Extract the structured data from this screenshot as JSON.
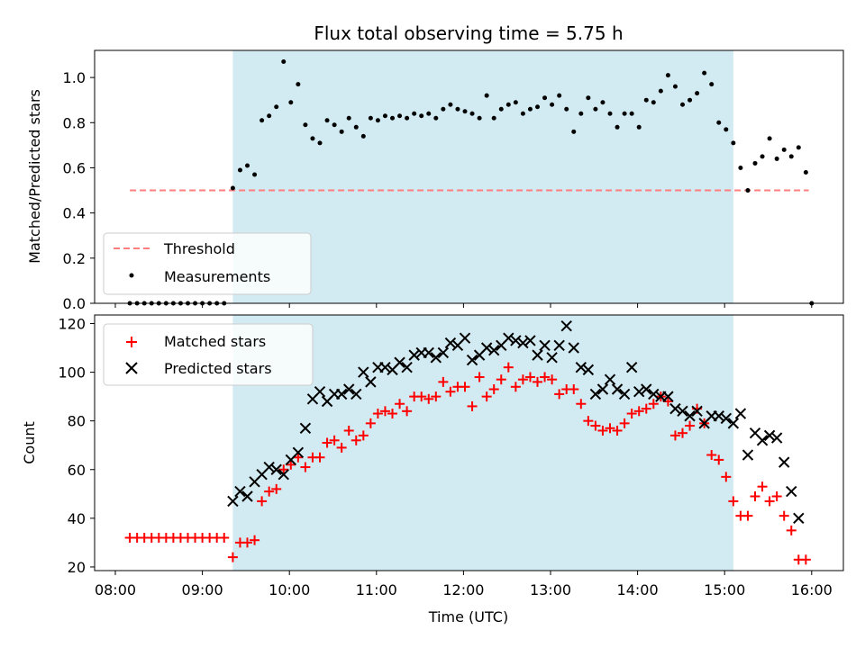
{
  "chart_data": [
    {
      "type": "scatter",
      "title": "Flux total observing time = 5.75 h",
      "xlabel": "",
      "ylabel": "Matched/Predicted stars",
      "ylim": [
        0,
        1.12
      ],
      "yticks": [
        "0.0",
        "0.2",
        "0.4",
        "0.6",
        "0.8",
        "1.0"
      ],
      "shaded_span": [
        "09:21",
        "15:06"
      ],
      "legend": {
        "placement": "lower-left",
        "entries": [
          "Threshold",
          "Measurements"
        ]
      },
      "threshold": {
        "name": "Threshold",
        "y": 0.5,
        "x_from": "08:10",
        "x_to": "15:58"
      },
      "measurements": {
        "name": "Measurements",
        "points": [
          [
            "08:10",
            0
          ],
          [
            "08:15",
            0
          ],
          [
            "08:20",
            0
          ],
          [
            "08:25",
            0
          ],
          [
            "08:30",
            0
          ],
          [
            "08:35",
            0
          ],
          [
            "08:40",
            0
          ],
          [
            "08:45",
            0
          ],
          [
            "08:50",
            0
          ],
          [
            "08:55",
            0
          ],
          [
            "09:00",
            0
          ],
          [
            "09:05",
            0
          ],
          [
            "09:10",
            0
          ],
          [
            "09:15",
            0
          ],
          [
            "09:21",
            0.51
          ],
          [
            "09:26",
            0.59
          ],
          [
            "09:31",
            0.61
          ],
          [
            "09:36",
            0.57
          ],
          [
            "09:41",
            0.81
          ],
          [
            "09:46",
            0.83
          ],
          [
            "09:51",
            0.87
          ],
          [
            "09:56",
            1.07
          ],
          [
            "10:01",
            0.89
          ],
          [
            "10:06",
            0.97
          ],
          [
            "10:11",
            0.79
          ],
          [
            "10:16",
            0.73
          ],
          [
            "10:21",
            0.71
          ],
          [
            "10:26",
            0.81
          ],
          [
            "10:31",
            0.79
          ],
          [
            "10:36",
            0.76
          ],
          [
            "10:41",
            0.82
          ],
          [
            "10:46",
            0.78
          ],
          [
            "10:51",
            0.74
          ],
          [
            "10:56",
            0.82
          ],
          [
            "11:01",
            0.81
          ],
          [
            "11:06",
            0.83
          ],
          [
            "11:11",
            0.82
          ],
          [
            "11:16",
            0.83
          ],
          [
            "11:21",
            0.82
          ],
          [
            "11:26",
            0.84
          ],
          [
            "11:31",
            0.83
          ],
          [
            "11:36",
            0.84
          ],
          [
            "11:41",
            0.82
          ],
          [
            "11:46",
            0.86
          ],
          [
            "11:51",
            0.88
          ],
          [
            "11:56",
            0.86
          ],
          [
            "12:01",
            0.85
          ],
          [
            "12:06",
            0.84
          ],
          [
            "12:11",
            0.82
          ],
          [
            "12:16",
            0.92
          ],
          [
            "12:21",
            0.82
          ],
          [
            "12:26",
            0.86
          ],
          [
            "12:31",
            0.88
          ],
          [
            "12:36",
            0.89
          ],
          [
            "12:41",
            0.84
          ],
          [
            "12:46",
            0.86
          ],
          [
            "12:51",
            0.87
          ],
          [
            "12:56",
            0.91
          ],
          [
            "13:01",
            0.88
          ],
          [
            "13:06",
            0.92
          ],
          [
            "13:11",
            0.86
          ],
          [
            "13:16",
            0.76
          ],
          [
            "13:21",
            0.84
          ],
          [
            "13:26",
            0.91
          ],
          [
            "13:31",
            0.86
          ],
          [
            "13:36",
            0.89
          ],
          [
            "13:41",
            0.84
          ],
          [
            "13:46",
            0.78
          ],
          [
            "13:51",
            0.84
          ],
          [
            "13:56",
            0.84
          ],
          [
            "14:01",
            0.78
          ],
          [
            "14:06",
            0.9
          ],
          [
            "14:11",
            0.89
          ],
          [
            "14:16",
            0.94
          ],
          [
            "14:21",
            1.01
          ],
          [
            "14:26",
            0.96
          ],
          [
            "14:31",
            0.88
          ],
          [
            "14:36",
            0.9
          ],
          [
            "14:41",
            0.93
          ],
          [
            "14:46",
            1.02
          ],
          [
            "14:51",
            0.97
          ],
          [
            "14:56",
            0.8
          ],
          [
            "15:01",
            0.77
          ],
          [
            "15:06",
            0.71
          ],
          [
            "15:11",
            0.6
          ],
          [
            "15:16",
            0.5
          ],
          [
            "15:21",
            0.62
          ],
          [
            "15:26",
            0.65
          ],
          [
            "15:31",
            0.73
          ],
          [
            "15:36",
            0.64
          ],
          [
            "15:41",
            0.68
          ],
          [
            "15:46",
            0.65
          ],
          [
            "15:51",
            0.69
          ],
          [
            "15:56",
            0.58
          ],
          [
            "16:00",
            0
          ]
        ]
      }
    },
    {
      "type": "scatter",
      "title": "",
      "xlabel": "Time (UTC)",
      "ylabel": "Count",
      "ylim": [
        18.5,
        123.5
      ],
      "yticks": [
        "20",
        "40",
        "60",
        "80",
        "100",
        "120"
      ],
      "xticks": [
        "08:00",
        "09:00",
        "10:00",
        "11:00",
        "12:00",
        "13:00",
        "14:00",
        "15:00",
        "16:00"
      ],
      "shaded_span": [
        "09:21",
        "15:06"
      ],
      "legend": {
        "placement": "upper-left",
        "entries": [
          "Matched stars",
          "Predicted stars"
        ]
      },
      "matched": {
        "name": "Matched stars",
        "color": "#ff0000",
        "points": [
          [
            "08:10",
            32
          ],
          [
            "08:15",
            32
          ],
          [
            "08:20",
            32
          ],
          [
            "08:25",
            32
          ],
          [
            "08:30",
            32
          ],
          [
            "08:35",
            32
          ],
          [
            "08:40",
            32
          ],
          [
            "08:45",
            32
          ],
          [
            "08:50",
            32
          ],
          [
            "08:55",
            32
          ],
          [
            "09:00",
            32
          ],
          [
            "09:05",
            32
          ],
          [
            "09:10",
            32
          ],
          [
            "09:15",
            32
          ],
          [
            "09:21",
            24
          ],
          [
            "09:26",
            30
          ],
          [
            "09:31",
            30
          ],
          [
            "09:36",
            31
          ],
          [
            "09:41",
            47
          ],
          [
            "09:46",
            51
          ],
          [
            "09:51",
            52
          ],
          [
            "09:56",
            60
          ],
          [
            "10:01",
            62
          ],
          [
            "10:06",
            65
          ],
          [
            "10:11",
            61
          ],
          [
            "10:16",
            65
          ],
          [
            "10:21",
            65
          ],
          [
            "10:26",
            71
          ],
          [
            "10:31",
            72
          ],
          [
            "10:36",
            69
          ],
          [
            "10:41",
            76
          ],
          [
            "10:46",
            72
          ],
          [
            "10:51",
            74
          ],
          [
            "10:56",
            79
          ],
          [
            "11:01",
            83
          ],
          [
            "11:06",
            84
          ],
          [
            "11:11",
            83
          ],
          [
            "11:16",
            87
          ],
          [
            "11:21",
            84
          ],
          [
            "11:26",
            90
          ],
          [
            "11:31",
            90
          ],
          [
            "11:36",
            89
          ],
          [
            "11:41",
            90
          ],
          [
            "11:46",
            96
          ],
          [
            "11:51",
            92
          ],
          [
            "11:56",
            94
          ],
          [
            "12:01",
            94
          ],
          [
            "12:06",
            86
          ],
          [
            "12:11",
            98
          ],
          [
            "12:16",
            90
          ],
          [
            "12:21",
            93
          ],
          [
            "12:26",
            97
          ],
          [
            "12:31",
            102
          ],
          [
            "12:36",
            94
          ],
          [
            "12:41",
            97
          ],
          [
            "12:46",
            98
          ],
          [
            "12:51",
            96
          ],
          [
            "12:56",
            98
          ],
          [
            "13:01",
            97
          ],
          [
            "13:06",
            91
          ],
          [
            "13:11",
            93
          ],
          [
            "13:16",
            93
          ],
          [
            "13:21",
            87
          ],
          [
            "13:26",
            80
          ],
          [
            "13:31",
            78
          ],
          [
            "13:36",
            76
          ],
          [
            "13:41",
            77
          ],
          [
            "13:46",
            76
          ],
          [
            "13:51",
            79
          ],
          [
            "13:56",
            83
          ],
          [
            "14:01",
            84
          ],
          [
            "14:06",
            85
          ],
          [
            "14:11",
            87
          ],
          [
            "14:16",
            90
          ],
          [
            "14:21",
            88
          ],
          [
            "14:26",
            74
          ],
          [
            "14:31",
            75
          ],
          [
            "14:36",
            78
          ],
          [
            "14:41",
            85
          ],
          [
            "14:46",
            79
          ],
          [
            "14:51",
            66
          ],
          [
            "14:56",
            64
          ],
          [
            "15:01",
            57
          ],
          [
            "15:06",
            47
          ],
          [
            "15:11",
            41
          ],
          [
            "15:16",
            41
          ],
          [
            "15:21",
            49
          ],
          [
            "15:26",
            53
          ],
          [
            "15:31",
            47
          ],
          [
            "15:36",
            49
          ],
          [
            "15:41",
            41
          ],
          [
            "15:46",
            35
          ],
          [
            "15:51",
            23
          ],
          [
            "15:56",
            23
          ]
        ]
      },
      "predicted": {
        "name": "Predicted stars",
        "color": "#000000",
        "points": [
          [
            "09:21",
            47
          ],
          [
            "09:26",
            51
          ],
          [
            "09:31",
            49
          ],
          [
            "09:36",
            55
          ],
          [
            "09:41",
            58
          ],
          [
            "09:46",
            61
          ],
          [
            "09:51",
            60
          ],
          [
            "09:56",
            58
          ],
          [
            "10:01",
            64
          ],
          [
            "10:06",
            67
          ],
          [
            "10:11",
            77
          ],
          [
            "10:16",
            89
          ],
          [
            "10:21",
            92
          ],
          [
            "10:26",
            88
          ],
          [
            "10:31",
            91
          ],
          [
            "10:36",
            91
          ],
          [
            "10:41",
            93
          ],
          [
            "10:46",
            91
          ],
          [
            "10:51",
            100
          ],
          [
            "10:56",
            96
          ],
          [
            "11:01",
            102
          ],
          [
            "11:06",
            102
          ],
          [
            "11:11",
            101
          ],
          [
            "11:16",
            104
          ],
          [
            "11:21",
            102
          ],
          [
            "11:26",
            107
          ],
          [
            "11:31",
            108
          ],
          [
            "11:36",
            108
          ],
          [
            "11:41",
            106
          ],
          [
            "11:46",
            108
          ],
          [
            "11:51",
            112
          ],
          [
            "11:56",
            111
          ],
          [
            "12:01",
            114
          ],
          [
            "12:06",
            105
          ],
          [
            "12:11",
            107
          ],
          [
            "12:16",
            110
          ],
          [
            "12:21",
            109
          ],
          [
            "12:26",
            111
          ],
          [
            "12:31",
            114
          ],
          [
            "12:36",
            113
          ],
          [
            "12:41",
            112
          ],
          [
            "12:46",
            113
          ],
          [
            "12:51",
            107
          ],
          [
            "12:56",
            111
          ],
          [
            "13:01",
            106
          ],
          [
            "13:06",
            111
          ],
          [
            "13:11",
            119
          ],
          [
            "13:16",
            110
          ],
          [
            "13:21",
            102
          ],
          [
            "13:26",
            101
          ],
          [
            "13:31",
            91
          ],
          [
            "13:36",
            93
          ],
          [
            "13:41",
            97
          ],
          [
            "13:46",
            93
          ],
          [
            "13:51",
            91
          ],
          [
            "13:56",
            102
          ],
          [
            "14:01",
            92
          ],
          [
            "14:06",
            93
          ],
          [
            "14:11",
            91
          ],
          [
            "14:16",
            90
          ],
          [
            "14:21",
            90
          ],
          [
            "14:26",
            85
          ],
          [
            "14:31",
            84
          ],
          [
            "14:36",
            82
          ],
          [
            "14:41",
            84
          ],
          [
            "14:46",
            79
          ],
          [
            "14:51",
            82
          ],
          [
            "14:56",
            82
          ],
          [
            "15:01",
            81
          ],
          [
            "15:06",
            79
          ],
          [
            "15:11",
            83
          ],
          [
            "15:16",
            66
          ],
          [
            "15:21",
            75
          ],
          [
            "15:26",
            72
          ],
          [
            "15:31",
            74
          ],
          [
            "15:36",
            73
          ],
          [
            "15:41",
            63
          ],
          [
            "15:46",
            51
          ],
          [
            "15:51",
            40
          ]
        ]
      }
    }
  ]
}
